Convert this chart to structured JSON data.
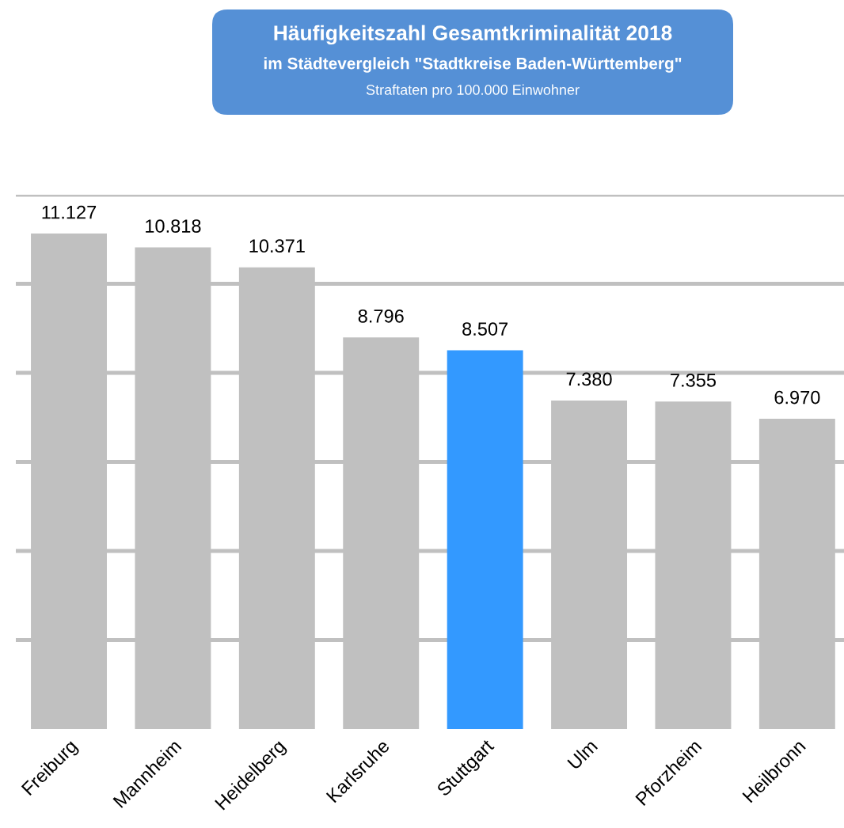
{
  "chart_data": {
    "type": "bar",
    "title": "Häufigkeitszahl Gesamtkriminalität 2018",
    "subtitle": "im Städtevergleich \"Stadtkreise Baden-Württemberg\"",
    "annotations": [
      "Straftaten pro 100.000 Einwohner"
    ],
    "categories": [
      "Freiburg",
      "Mannheim",
      "Heidelberg",
      "Karlsruhe",
      "Stuttgart",
      "Ulm",
      "Pforzheim",
      "Heilbronn"
    ],
    "values": [
      11127,
      10818,
      10371,
      8796,
      8507,
      7380,
      7355,
      6970
    ],
    "value_labels": [
      "11.127",
      "10.818",
      "10.371",
      "8.796",
      "8.507",
      "7.380",
      "7.355",
      "6.970"
    ],
    "colors": [
      "#c0c0c0",
      "#c0c0c0",
      "#c0c0c0",
      "#c0c0c0",
      "#3399ff",
      "#c0c0c0",
      "#c0c0c0",
      "#c0c0c0"
    ],
    "ylim": [
      0,
      12000
    ],
    "yticks": [
      {
        "value": 2000,
        "label": null
      },
      {
        "value": 4000,
        "label": null
      },
      {
        "value": 6000,
        "label": null
      },
      {
        "value": 8000,
        "label": null
      },
      {
        "value": 10000,
        "label": null
      },
      {
        "value": 12000,
        "label": null
      }
    ],
    "grid": "y",
    "tick_labels": "x"
  }
}
